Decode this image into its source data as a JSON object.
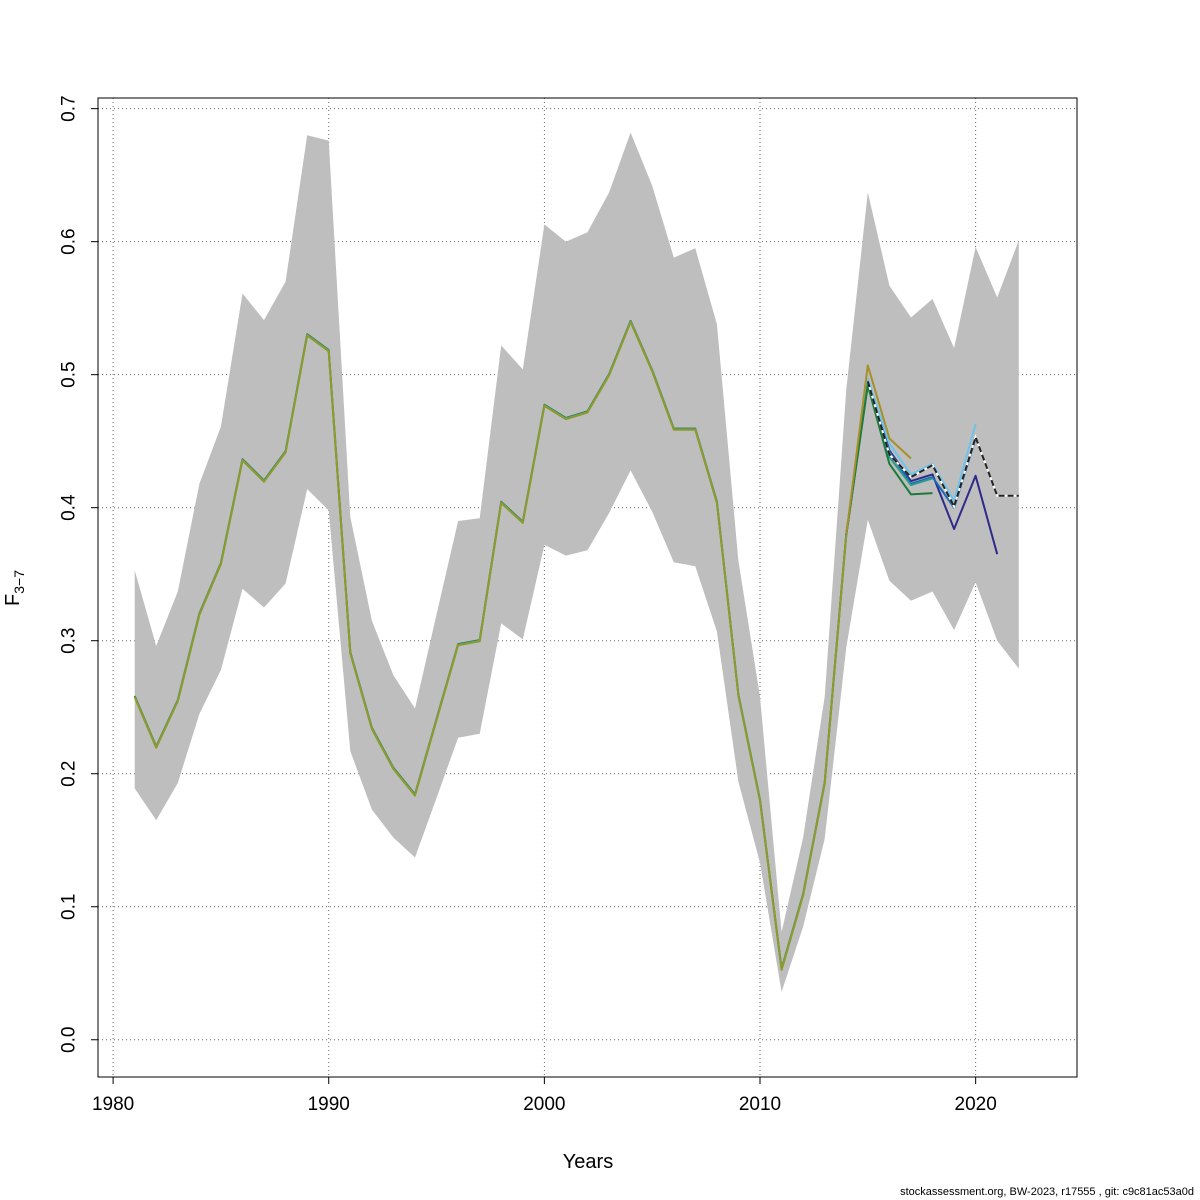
{
  "chart_data": {
    "type": "line",
    "xlabel": "Years",
    "ylabel_main": "F",
    "ylabel_sub": "3−7",
    "xlim": [
      1979.3,
      2024.7
    ],
    "ylim": [
      -0.028,
      0.708
    ],
    "x_ticks": [
      1980,
      1990,
      2000,
      2010,
      2020
    ],
    "y_ticks": [
      0.0,
      0.1,
      0.2,
      0.3,
      0.4,
      0.5,
      0.6,
      0.7
    ],
    "grid": true,
    "band": {
      "x": [
        1981,
        1982,
        1983,
        1984,
        1985,
        1986,
        1987,
        1988,
        1989,
        1990,
        1991,
        1992,
        1993,
        1994,
        1995,
        1996,
        1997,
        1998,
        1999,
        2000,
        2001,
        2002,
        2003,
        2004,
        2005,
        2006,
        2007,
        2008,
        2009,
        2010,
        2011,
        2012,
        2013,
        2014,
        2015,
        2016,
        2017,
        2018,
        2019,
        2020,
        2021,
        2022
      ],
      "lower": [
        0.189,
        0.165,
        0.193,
        0.245,
        0.278,
        0.339,
        0.325,
        0.343,
        0.414,
        0.398,
        0.217,
        0.173,
        0.152,
        0.137,
        0.182,
        0.227,
        0.23,
        0.313,
        0.301,
        0.372,
        0.364,
        0.368,
        0.396,
        0.428,
        0.397,
        0.359,
        0.356,
        0.307,
        0.194,
        0.133,
        0.036,
        0.085,
        0.151,
        0.295,
        0.391,
        0.345,
        0.33,
        0.337,
        0.308,
        0.344,
        0.3,
        0.279
      ],
      "upper": [
        0.353,
        0.296,
        0.337,
        0.418,
        0.461,
        0.561,
        0.541,
        0.57,
        0.68,
        0.676,
        0.393,
        0.315,
        0.274,
        0.249,
        0.32,
        0.39,
        0.392,
        0.522,
        0.504,
        0.613,
        0.6,
        0.607,
        0.637,
        0.682,
        0.642,
        0.588,
        0.595,
        0.538,
        0.36,
        0.258,
        0.081,
        0.152,
        0.258,
        0.489,
        0.637,
        0.567,
        0.543,
        0.557,
        0.52,
        0.596,
        0.558,
        0.601
      ],
      "color": "#bebebe"
    },
    "x_common": [
      1981,
      1982,
      1983,
      1984,
      1985,
      1986,
      1987,
      1988,
      1989,
      1990,
      1991,
      1992,
      1993,
      1994,
      1995,
      1996,
      1997,
      1998,
      1999,
      2000,
      2001,
      2002,
      2003,
      2004,
      2005,
      2006,
      2007,
      2008,
      2009,
      2010,
      2011,
      2012,
      2013,
      2014
    ],
    "y_common": [
      0.258,
      0.22,
      0.255,
      0.32,
      0.358,
      0.436,
      0.42,
      0.442,
      0.53,
      0.518,
      0.291,
      0.234,
      0.204,
      0.184,
      0.241,
      0.297,
      0.3,
      0.404,
      0.389,
      0.477,
      0.467,
      0.472,
      0.5,
      0.54,
      0.503,
      0.459,
      0.459,
      0.404,
      0.259,
      0.18,
      0.053,
      0.109,
      0.193,
      0.38
    ],
    "series": [
      {
        "color": "#2e2a8a",
        "x": [
          2015,
          2016,
          2017,
          2018,
          2019,
          2020,
          2021
        ],
        "values": [
          0.495,
          0.443,
          0.42,
          0.425,
          0.384,
          0.424,
          0.365
        ],
        "dashed": false
      },
      {
        "color": "#1a6bb5",
        "x": [
          2015,
          2016,
          2017,
          2018,
          2019,
          2020
        ],
        "values": [
          0.494,
          0.442,
          0.418,
          0.423,
          0.4,
          0.452
        ],
        "dashed": false
      },
      {
        "color": "#6ec3ea",
        "x": [
          2015,
          2016,
          2017,
          2018,
          2019,
          2020
        ],
        "values": [
          0.497,
          0.448,
          0.425,
          0.433,
          0.405,
          0.463
        ],
        "dashed": false
      },
      {
        "color": "#2b9a8c",
        "x": [
          2015,
          2016,
          2017,
          2018
        ],
        "values": [
          0.493,
          0.438,
          0.417,
          0.422
        ],
        "dashed": false
      },
      {
        "color": "#1c7a3a",
        "x": [
          2015,
          2016,
          2017,
          2018
        ],
        "values": [
          0.492,
          0.433,
          0.41,
          0.411
        ],
        "dashed": false
      },
      {
        "color": "#a6902a",
        "x": [
          2015,
          2016,
          2017
        ],
        "values": [
          0.507,
          0.452,
          0.437
        ],
        "dashed": false
      },
      {
        "color": "#222222",
        "x": [
          2015,
          2016,
          2017,
          2018,
          2019,
          2020,
          2021,
          2022
        ],
        "values": [
          0.495,
          0.44,
          0.423,
          0.432,
          0.401,
          0.453,
          0.409,
          0.409
        ],
        "dashed": true
      }
    ],
    "common_line_colors": [
      "#1c7a3a",
      "#4aa0a0",
      "#8f9a2a"
    ]
  },
  "footer": "stockassessment.org, BW-2023, r17555 , git: c9c81ac53a0d"
}
